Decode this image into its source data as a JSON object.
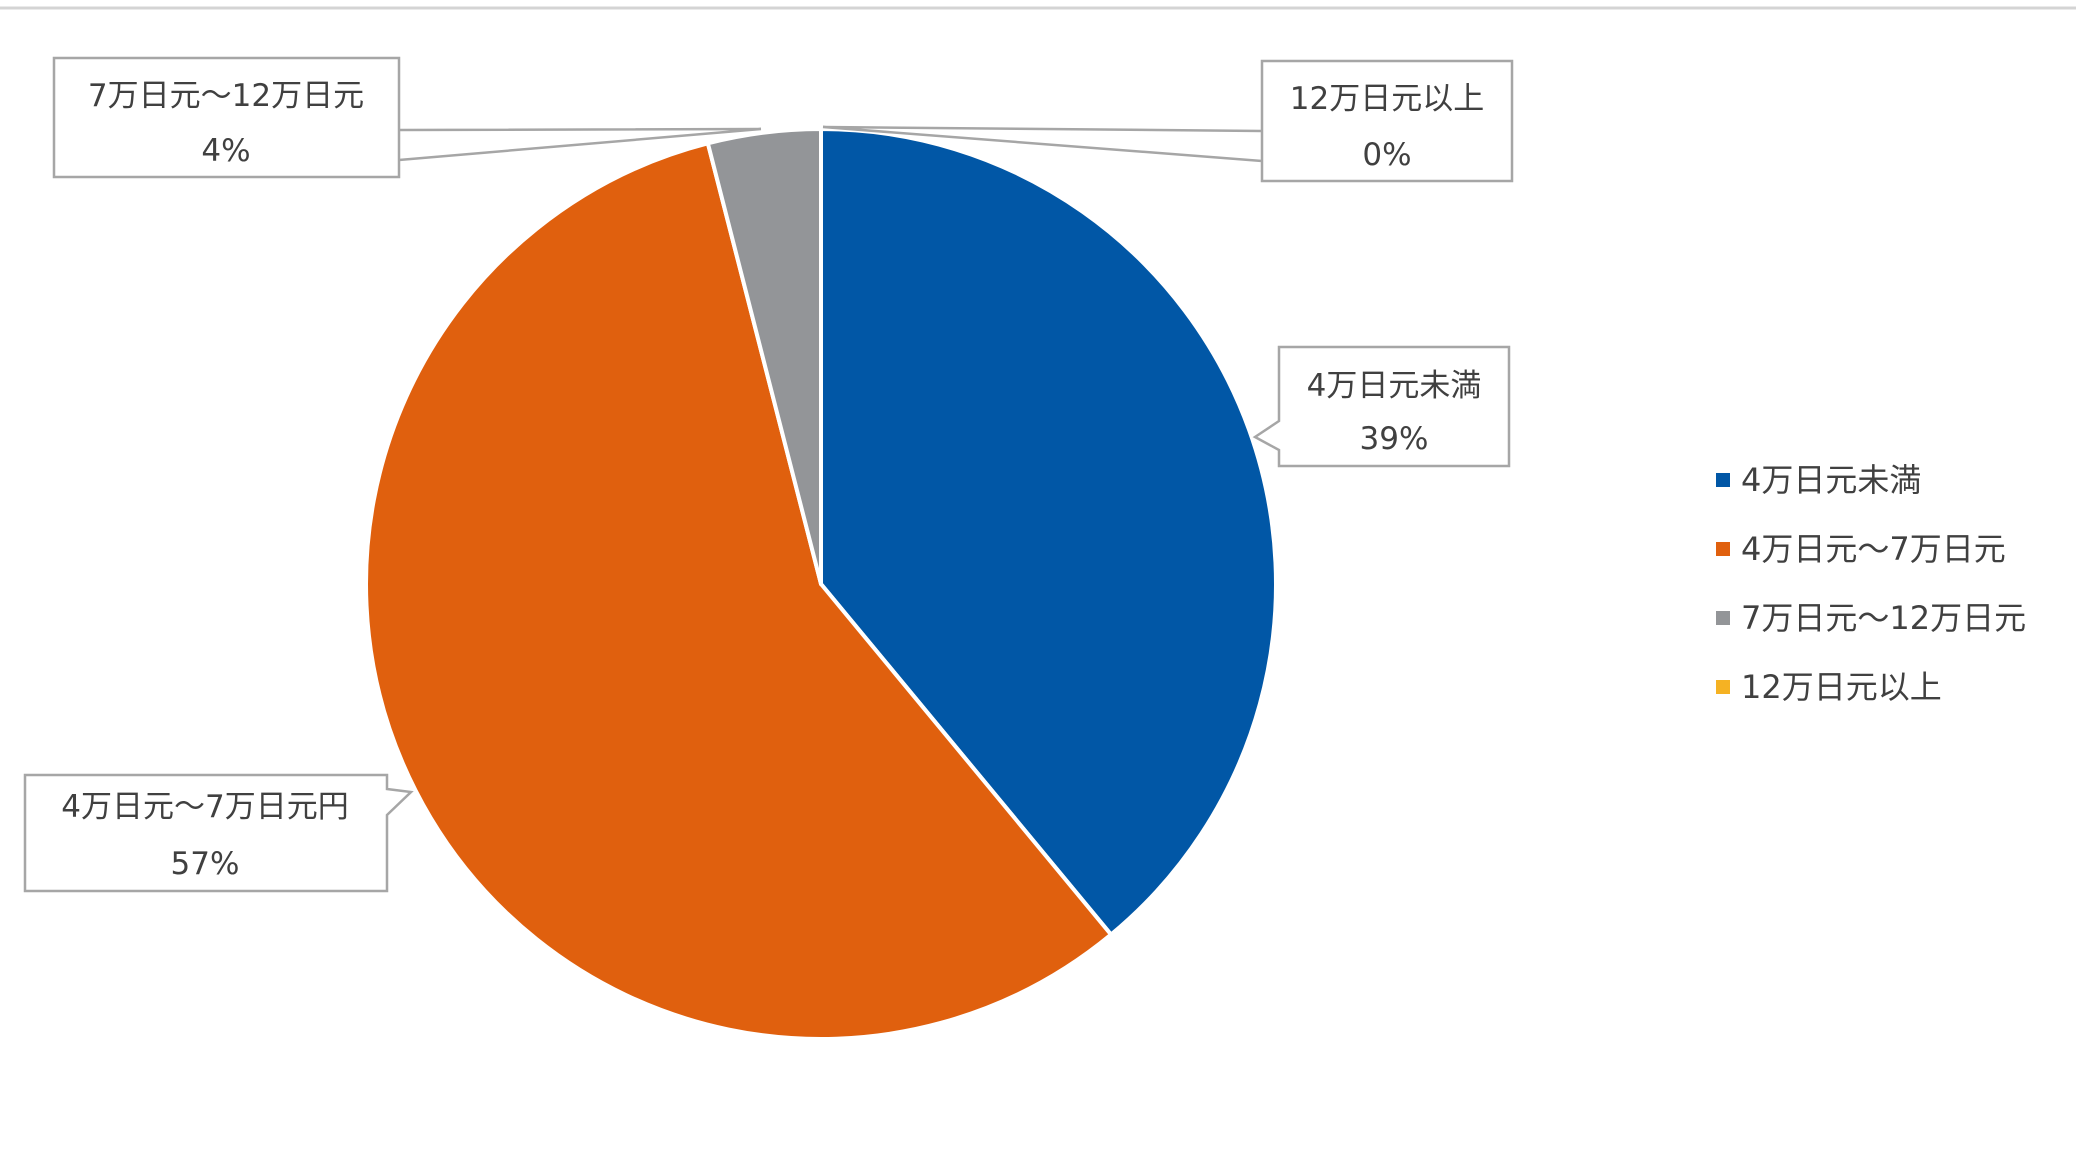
{
  "chart_data": {
    "type": "pie",
    "categories": [
      "4万日元未満",
      "4万日元〜7万日元",
      "7万日元〜12万日元",
      "12万日元以上"
    ],
    "values": [
      39,
      57,
      4,
      0
    ],
    "colors": [
      "#0157A6",
      "#E0600E",
      "#939598",
      "#F5B223"
    ],
    "data_labels": [
      {
        "name": "4万日元未満",
        "value": "39%"
      },
      {
        "name": "4万日元〜7万日元円",
        "value": "57%"
      },
      {
        "name": "7万日元〜12万日元",
        "value": "4%"
      },
      {
        "name": "12万日元以上",
        "value": "0%"
      }
    ],
    "legend_position": "right"
  }
}
